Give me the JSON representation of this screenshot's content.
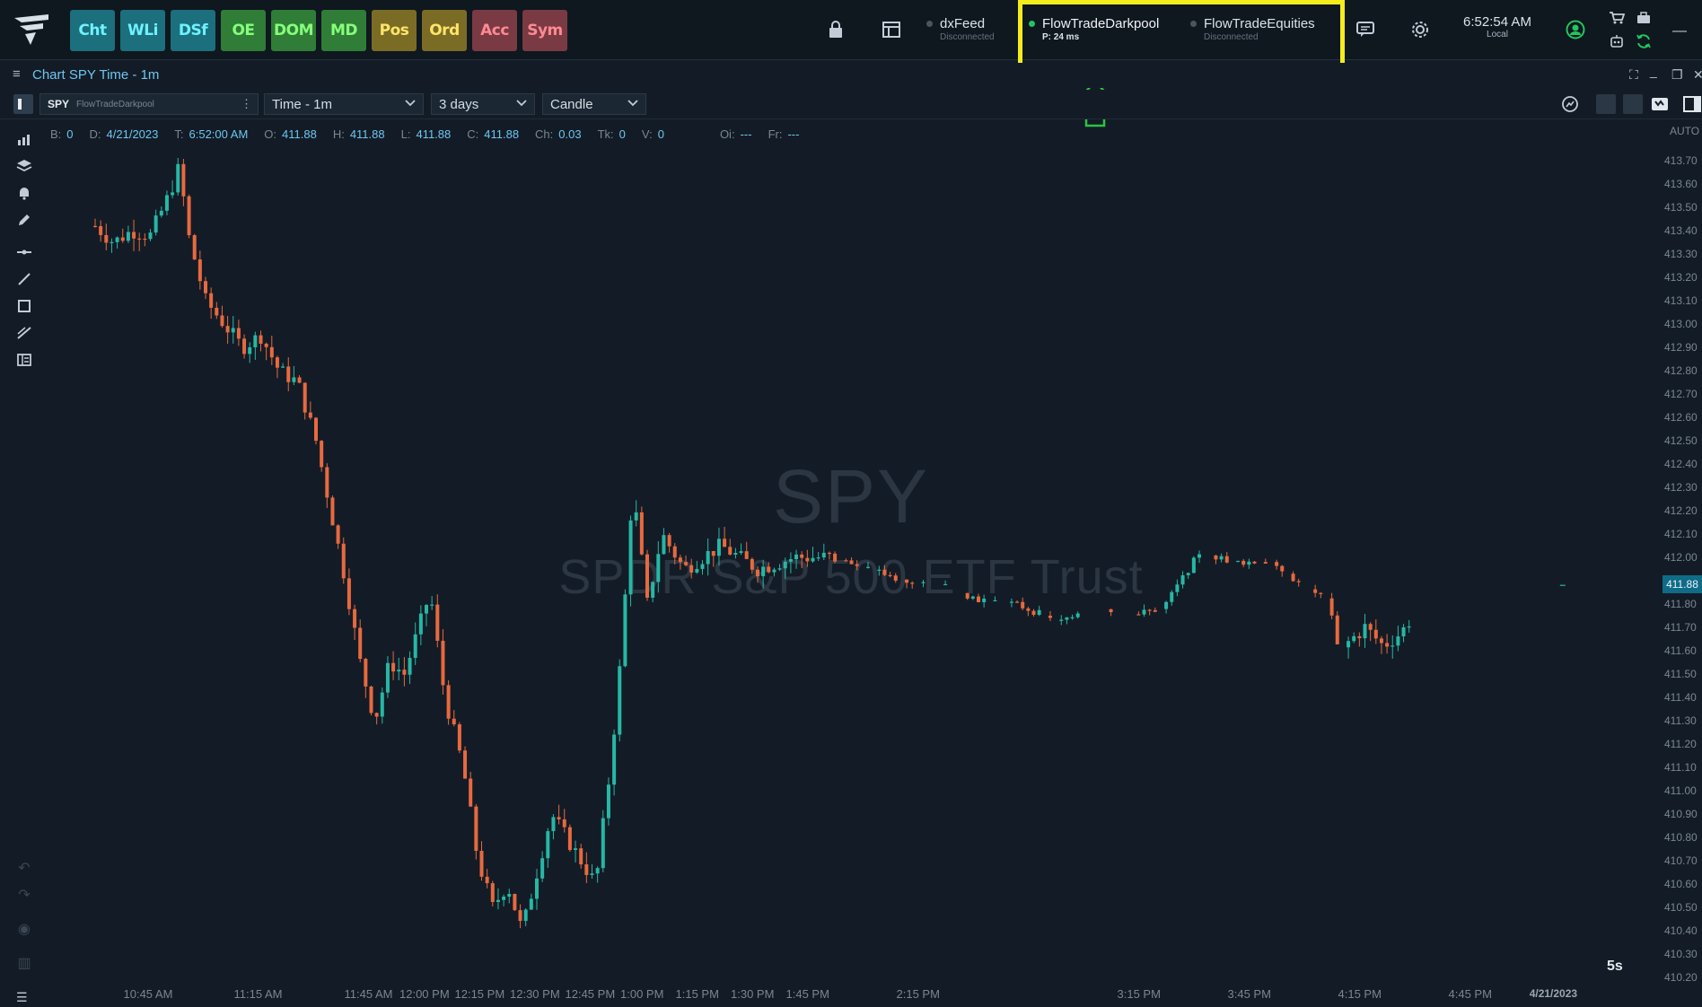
{
  "top_bar": {
    "modules": [
      {
        "label": "Cht",
        "bg": "#1c6f7c",
        "fg": "#6ff2ff"
      },
      {
        "label": "WLi",
        "bg": "#1c6f7c",
        "fg": "#6ff2ff"
      },
      {
        "label": "DSf",
        "bg": "#1c6f7c",
        "fg": "#6ff2ff"
      },
      {
        "label": "OE",
        "bg": "#2f7d36",
        "fg": "#86ff7c"
      },
      {
        "label": "DOM",
        "bg": "#2f7d36",
        "fg": "#86ff7c"
      },
      {
        "label": "MD",
        "bg": "#2f7d36",
        "fg": "#86ff7c"
      },
      {
        "label": "Pos",
        "bg": "#7b6c25",
        "fg": "#ffe56a"
      },
      {
        "label": "Ord",
        "bg": "#7b6c25",
        "fg": "#ffe56a"
      },
      {
        "label": "Acc",
        "bg": "#7a3a43",
        "fg": "#ff8a93"
      },
      {
        "label": "Sym",
        "bg": "#7a3a43",
        "fg": "#ff8a93"
      }
    ],
    "feeds": [
      {
        "name": "dxFeed",
        "status": "Disconnected",
        "dot_color": "#4b5560"
      },
      {
        "name": "FlowTradeDarkpool",
        "status": "P: 24 ms",
        "dot_color": "#22c55e"
      },
      {
        "name": "FlowTradeEquities",
        "status": "Disconnected",
        "dot_color": "#4b5560"
      }
    ],
    "clock_time": "6:52:54 AM",
    "clock_zone": "Local"
  },
  "chart_window": {
    "title": "Chart SPY Time - 1m",
    "symbol": "SPY",
    "account": "FlowTradeDarkpool",
    "timeframe": "Time - 1m",
    "range": "3 days",
    "chart_style": "Candle",
    "watermark_symbol": "SPY",
    "watermark_name": "SPDR S&P 500 ETF Trust",
    "interval_badge": "5s",
    "auto_label": "AUTO",
    "last_price": "411.88"
  },
  "ohlc_bar": [
    {
      "label": "B:",
      "value": "0"
    },
    {
      "label": "D:",
      "value": "4/21/2023"
    },
    {
      "label": "T:",
      "value": "6:52:00 AM"
    },
    {
      "label": "O:",
      "value": "411.88"
    },
    {
      "label": "H:",
      "value": "411.88"
    },
    {
      "label": "L:",
      "value": "411.88"
    },
    {
      "label": "C:",
      "value": "411.88"
    },
    {
      "label": "Ch:",
      "value": "0.03"
    },
    {
      "label": "Tk:",
      "value": "0"
    },
    {
      "label": "V:",
      "value": "0"
    },
    {
      "label": "Oi:",
      "value": "---"
    },
    {
      "label": "Fr:",
      "value": "---"
    }
  ],
  "colors": {
    "up": "#26b7a6",
    "down": "#e8693f",
    "highlight": "#f4ec1c",
    "arrow": "#2dc43f"
  },
  "chart_data": {
    "type": "candlestick",
    "y_ticks": [
      "413.70",
      "413.60",
      "413.50",
      "413.40",
      "413.30",
      "413.20",
      "413.10",
      "413.00",
      "412.90",
      "412.80",
      "412.70",
      "412.60",
      "412.50",
      "412.40",
      "412.30",
      "412.20",
      "412.10",
      "412.00",
      "411.80",
      "411.70",
      "411.60",
      "411.50",
      "411.40",
      "411.30",
      "411.20",
      "411.10",
      "411.00",
      "410.90",
      "410.80",
      "410.70",
      "410.60",
      "410.50",
      "410.40",
      "410.30",
      "410.20"
    ],
    "x_ticks": [
      {
        "label": "10:45 AM",
        "min": 15
      },
      {
        "label": "11:15 AM",
        "min": 45
      },
      {
        "label": "11:45 AM",
        "min": 75
      },
      {
        "label": "12:00 PM",
        "min": 90
      },
      {
        "label": "12:15 PM",
        "min": 105
      },
      {
        "label": "12:30 PM",
        "min": 120
      },
      {
        "label": "12:45 PM",
        "min": 135
      },
      {
        "label": "1:00 PM",
        "min": 150
      },
      {
        "label": "1:15 PM",
        "min": 165
      },
      {
        "label": "1:30 PM",
        "min": 180
      },
      {
        "label": "1:45 PM",
        "min": 195
      },
      {
        "label": "2:15 PM",
        "min": 225
      },
      {
        "label": "3:15 PM",
        "min": 285
      },
      {
        "label": "3:45 PM",
        "min": 315
      },
      {
        "label": "4:15 PM",
        "min": 345
      },
      {
        "label": "4:45 PM",
        "min": 375
      },
      {
        "label": "4/21/2023",
        "min": 397,
        "date": true
      }
    ],
    "ylim": [
      410.2,
      413.7
    ],
    "anchors": [
      [
        0,
        413.42
      ],
      [
        5,
        413.35
      ],
      [
        10,
        413.4
      ],
      [
        15,
        413.38
      ],
      [
        20,
        413.55
      ],
      [
        23,
        413.68
      ],
      [
        25,
        413.4
      ],
      [
        30,
        413.1
      ],
      [
        35,
        413.0
      ],
      [
        40,
        412.9
      ],
      [
        45,
        412.95
      ],
      [
        50,
        412.8
      ],
      [
        55,
        412.75
      ],
      [
        60,
        412.5
      ],
      [
        64,
        412.2
      ],
      [
        68,
        411.9
      ],
      [
        72,
        411.55
      ],
      [
        76,
        411.3
      ],
      [
        80,
        411.55
      ],
      [
        84,
        411.5
      ],
      [
        88,
        411.7
      ],
      [
        91,
        411.85
      ],
      [
        95,
        411.4
      ],
      [
        100,
        411.1
      ],
      [
        104,
        410.7
      ],
      [
        108,
        410.5
      ],
      [
        112,
        410.6
      ],
      [
        116,
        410.4
      ],
      [
        120,
        410.65
      ],
      [
        124,
        410.9
      ],
      [
        128,
        410.8
      ],
      [
        132,
        410.7
      ],
      [
        136,
        410.6
      ],
      [
        140,
        411.1
      ],
      [
        143,
        411.6
      ],
      [
        146,
        412.3
      ],
      [
        150,
        411.8
      ],
      [
        154,
        412.1
      ],
      [
        160,
        411.95
      ],
      [
        170,
        412.05
      ],
      [
        180,
        411.95
      ],
      [
        190,
        412.0
      ],
      [
        200,
        412.0
      ],
      [
        210,
        411.95
      ],
      [
        220,
        411.9
      ],
      [
        230,
        411.88
      ],
      [
        240,
        411.82
      ],
      [
        250,
        411.8
      ],
      [
        258,
        411.75
      ],
      [
        262,
        411.72
      ],
      [
        270,
        411.8
      ],
      [
        280,
        411.75
      ],
      [
        290,
        411.78
      ],
      [
        300,
        412.02
      ],
      [
        310,
        411.98
      ],
      [
        320,
        411.98
      ],
      [
        328,
        411.88
      ],
      [
        335,
        411.82
      ],
      [
        338,
        411.6
      ],
      [
        345,
        411.7
      ],
      [
        350,
        411.62
      ],
      [
        355,
        411.68
      ],
      [
        358,
        411.75
      ]
    ]
  }
}
